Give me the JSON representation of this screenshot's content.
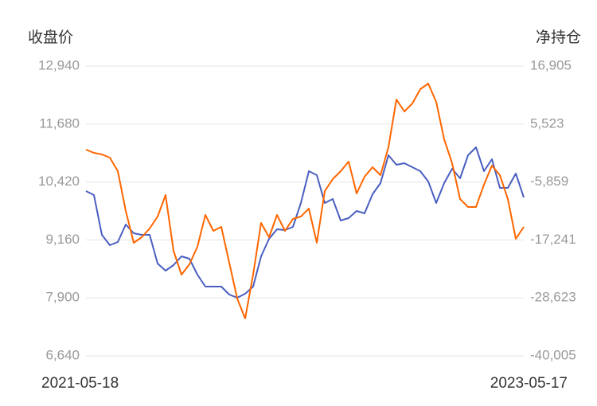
{
  "chart_data": {
    "type": "line",
    "y_label": "收盘价",
    "y2_label": "净持仓",
    "categories": [
      "2021-05-18",
      null,
      null,
      null,
      null,
      null,
      null,
      null,
      null,
      null,
      null,
      null,
      null,
      null,
      null,
      null,
      null,
      null,
      null,
      null,
      null,
      null,
      null,
      null,
      null,
      null,
      null,
      null,
      null,
      null,
      null,
      null,
      null,
      null,
      null,
      null,
      null,
      null,
      null,
      null,
      null,
      null,
      null,
      null,
      null,
      null,
      null,
      null,
      null,
      null,
      null,
      null,
      null,
      null,
      null,
      "2023-05-17"
    ],
    "series": [
      {
        "color": "#4a5fc1",
        "axis": "y",
        "values": [
          10223,
          10136,
          9271,
          9046,
          9115,
          9496,
          9306,
          9271,
          9271,
          8648,
          8492,
          8613,
          8803,
          8751,
          8405,
          8146,
          8146,
          8146,
          7973,
          7904,
          7990,
          8146,
          8803,
          9184,
          9392,
          9375,
          9444,
          9963,
          10655,
          10569,
          9963,
          10050,
          9583,
          9635,
          9790,
          9738,
          10154,
          10396,
          11002,
          10794,
          10828,
          10742,
          10655,
          10430,
          9963,
          10396,
          10707,
          10500,
          11002,
          11175,
          10655,
          10915,
          10292,
          10292,
          10603,
          10084
        ]
      },
      {
        "color": "#ff6600",
        "axis": "y2",
        "values": [
          491,
          -134,
          -447,
          -1072,
          -3729,
          -11545,
          -17798,
          -16704,
          -14985,
          -12639,
          -8419,
          -19361,
          -24051,
          -22019,
          -18580,
          -12327,
          -15453,
          -14672,
          -21706,
          -28741,
          -32649,
          -24051,
          -13890,
          -16704,
          -12327,
          -15453,
          -13108,
          -12639,
          -11076,
          -17798,
          -7637,
          -5292,
          -3729,
          -1853,
          -8106,
          -4824,
          -2948,
          -4511,
          960,
          10340,
          7995,
          9558,
          12372,
          13466,
          9871,
          2524,
          -2166,
          -9200,
          -10764,
          -10764,
          -6387,
          -2635,
          -4511,
          -9200,
          -17016,
          -14672
        ]
      }
    ],
    "ylim": [
      6640,
      12940
    ],
    "yticks": [
      {
        "value": 12940,
        "label": "12,940"
      },
      {
        "value": 11680,
        "label": "11,680"
      },
      {
        "value": 10420,
        "label": "10,420"
      },
      {
        "value": 9160,
        "label": "9,160"
      },
      {
        "value": 7900,
        "label": "7,900"
      },
      {
        "value": 6640,
        "label": "6,640"
      }
    ],
    "y2lim": [
      -40005,
      16905
    ],
    "y2ticks": [
      {
        "value": 16905,
        "label": "16,905"
      },
      {
        "value": 5523,
        "label": "5,523"
      },
      {
        "value": -5859,
        "label": "-5,859"
      },
      {
        "value": -17241,
        "label": "-17,241"
      },
      {
        "value": -28623,
        "label": "-28,623"
      },
      {
        "value": -40005,
        "label": "-40,005"
      }
    ],
    "grid": true
  }
}
